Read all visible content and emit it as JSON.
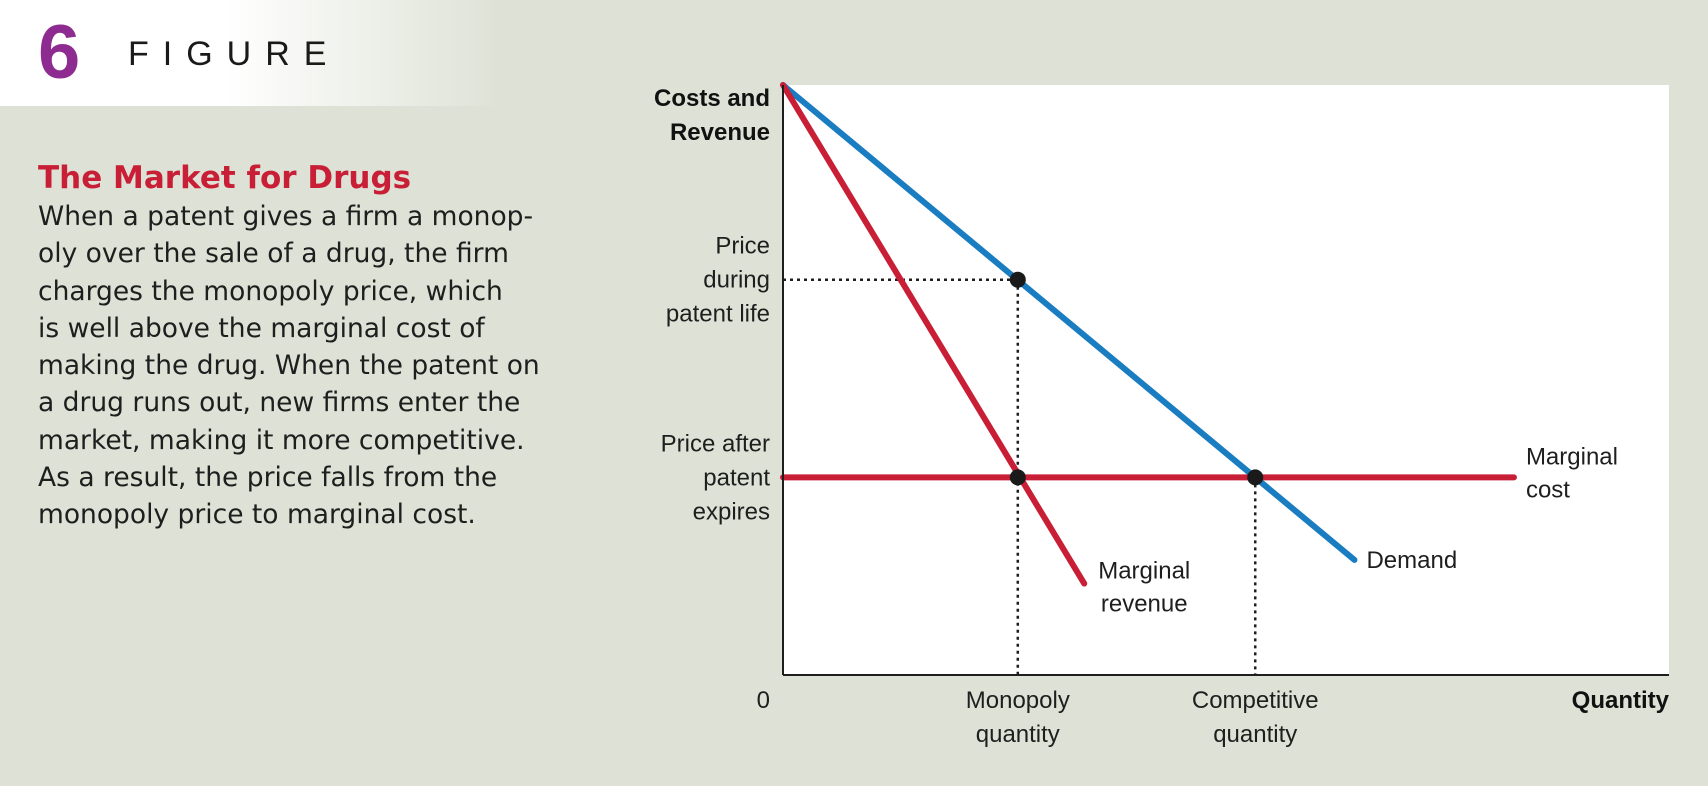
{
  "figure": {
    "number": "6",
    "word": "FIGURE"
  },
  "caption": {
    "title": "The Market for Drugs",
    "lines": [
      "When a patent gives a firm a monop-",
      "oly over the sale of a drug, the firm",
      "charges the monopoly price, which",
      "is well above the marginal cost of",
      "making the drug. When the patent on",
      "a drug runs out, new firms enter the",
      "market, making it more competitive.",
      "As a result, the price falls from the",
      "monopoly price to marginal cost."
    ]
  },
  "chart_data": {
    "type": "line",
    "title": "",
    "ylabel": [
      "Costs and",
      "Revenue"
    ],
    "xlabel": "Quantity",
    "origin_label": "0",
    "xlim": [
      0,
      100
    ],
    "ylim": [
      0,
      100
    ],
    "grid": false,
    "series": [
      {
        "name": "Demand",
        "label_lines": [
          "Demand"
        ],
        "color": "#1a7dc1",
        "x": [
          0,
          64.5
        ],
        "y": [
          100,
          19.5
        ]
      },
      {
        "name": "Marginal revenue",
        "label_lines": [
          "Marginal",
          "revenue"
        ],
        "color": "#c81e36",
        "x": [
          0,
          34
        ],
        "y": [
          100,
          15.5
        ]
      },
      {
        "name": "Marginal cost",
        "label_lines": [
          "Marginal",
          "cost"
        ],
        "color": "#c81e36",
        "x": [
          0,
          82.5
        ],
        "y": [
          33.5,
          33.5
        ]
      }
    ],
    "points": [
      {
        "name": "monopoly-point",
        "x": 26.5,
        "y": 67
      },
      {
        "name": "mr-mc-point",
        "x": 26.5,
        "y": 33.5
      },
      {
        "name": "competitive-point",
        "x": 53.3,
        "y": 33.5
      }
    ],
    "reference_lines": [
      {
        "name": "monopoly-price-line",
        "from": [
          0,
          67
        ],
        "to": [
          26.5,
          67
        ]
      },
      {
        "name": "monopoly-quantity-line",
        "from": [
          26.5,
          67
        ],
        "to": [
          26.5,
          0
        ]
      },
      {
        "name": "competitive-quantity-line",
        "from": [
          53.3,
          33.5
        ],
        "to": [
          53.3,
          0
        ]
      }
    ],
    "y_ticks": [
      {
        "name": "price-during-patent-label",
        "y": 67,
        "lines": [
          "Price",
          "during",
          "patent life"
        ]
      },
      {
        "name": "price-after-patent-label",
        "y": 33.5,
        "lines": [
          "Price after",
          "patent",
          "expires"
        ]
      }
    ],
    "x_ticks": [
      {
        "name": "monopoly-quantity-label",
        "x": 26.5,
        "lines": [
          "Monopoly",
          "quantity"
        ]
      },
      {
        "name": "competitive-quantity-label",
        "x": 53.3,
        "lines": [
          "Competitive",
          "quantity"
        ]
      }
    ]
  }
}
